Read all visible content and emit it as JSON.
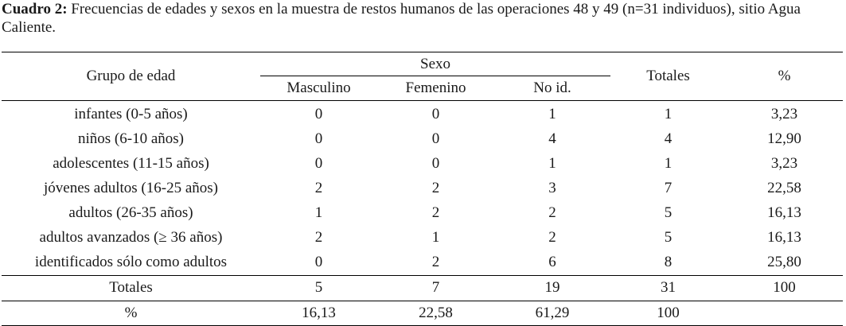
{
  "caption": {
    "label": "Cuadro 2:",
    "text": " Frecuencias de edades y sexos en la muestra de restos humanos de las operaciones 48 y 49 (n=31 individuos), sitio Agua Caliente."
  },
  "table": {
    "headers": {
      "group": "Grupo de edad",
      "sexo": "Sexo",
      "masculino": "Masculino",
      "femenino": "Femenino",
      "noid": "No id.",
      "totales": "Totales",
      "pct": "%"
    },
    "rows": [
      {
        "group": "infantes (0-5 años)",
        "m": "0",
        "f": "0",
        "n": "1",
        "t": "1",
        "p": "3,23"
      },
      {
        "group": "niños (6-10 años)",
        "m": "0",
        "f": "0",
        "n": "4",
        "t": "4",
        "p": "12,90"
      },
      {
        "group": "adolescentes (11-15 años)",
        "m": "0",
        "f": "0",
        "n": "1",
        "t": "1",
        "p": "3,23"
      },
      {
        "group": "jóvenes adultos (16-25 años)",
        "m": "2",
        "f": "2",
        "n": "3",
        "t": "7",
        "p": "22,58"
      },
      {
        "group": "adultos (26-35 años)",
        "m": "1",
        "f": "2",
        "n": "2",
        "t": "5",
        "p": "16,13"
      },
      {
        "group": "adultos avanzados (≥ 36 años)",
        "m": "2",
        "f": "1",
        "n": "2",
        "t": "5",
        "p": "16,13"
      },
      {
        "group": "identificados sólo como adultos",
        "m": "0",
        "f": "2",
        "n": "6",
        "t": "8",
        "p": "25,80"
      }
    ],
    "totals": {
      "label": "Totales",
      "m": "5",
      "f": "7",
      "n": "19",
      "t": "31",
      "p": "100"
    },
    "percent": {
      "label": "%",
      "m": "16,13",
      "f": "22,58",
      "n": "61,29",
      "t": "100",
      "p": ""
    }
  }
}
